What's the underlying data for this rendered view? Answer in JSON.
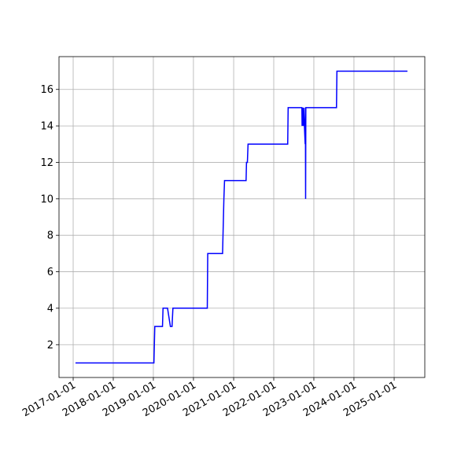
{
  "chart_data": {
    "type": "line",
    "color": "#0000ff",
    "grid": true,
    "xlim": [
      "2016-08-25",
      "2025-10-07"
    ],
    "xticks": [
      "2017-01-01",
      "2018-01-01",
      "2019-01-01",
      "2020-01-01",
      "2021-01-01",
      "2022-01-01",
      "2023-01-01",
      "2024-01-01",
      "2025-01-01"
    ],
    "ylim": [
      0.2,
      17.8
    ],
    "yticks": [
      2,
      4,
      6,
      8,
      10,
      12,
      14,
      16
    ],
    "x": [
      "2017-01-22",
      "2019-01-06",
      "2019-01-14",
      "2019-03-25",
      "2019-03-30",
      "2019-05-10",
      "2019-06-05",
      "2019-06-20",
      "2019-06-28",
      "2020-05-06",
      "2020-05-10",
      "2020-09-22",
      "2020-09-26",
      "2020-10-04",
      "2020-10-10",
      "2021-04-24",
      "2021-04-28",
      "2021-05-06",
      "2021-05-12",
      "2022-05-08",
      "2022-05-12",
      "2022-09-14",
      "2022-09-16",
      "2022-09-20",
      "2022-09-26",
      "2022-09-30",
      "2022-10-14",
      "2022-10-16",
      "2022-10-18",
      "2022-10-20",
      "2023-07-26",
      "2023-07-30",
      "2025-05-02"
    ],
    "values": [
      1,
      1,
      3,
      3,
      4,
      4,
      3,
      3,
      4,
      4,
      7,
      7,
      8,
      10,
      11,
      11,
      12,
      12,
      13,
      13,
      15,
      15,
      14,
      15,
      14,
      15,
      13,
      15,
      10,
      15,
      15,
      17,
      17
    ]
  }
}
